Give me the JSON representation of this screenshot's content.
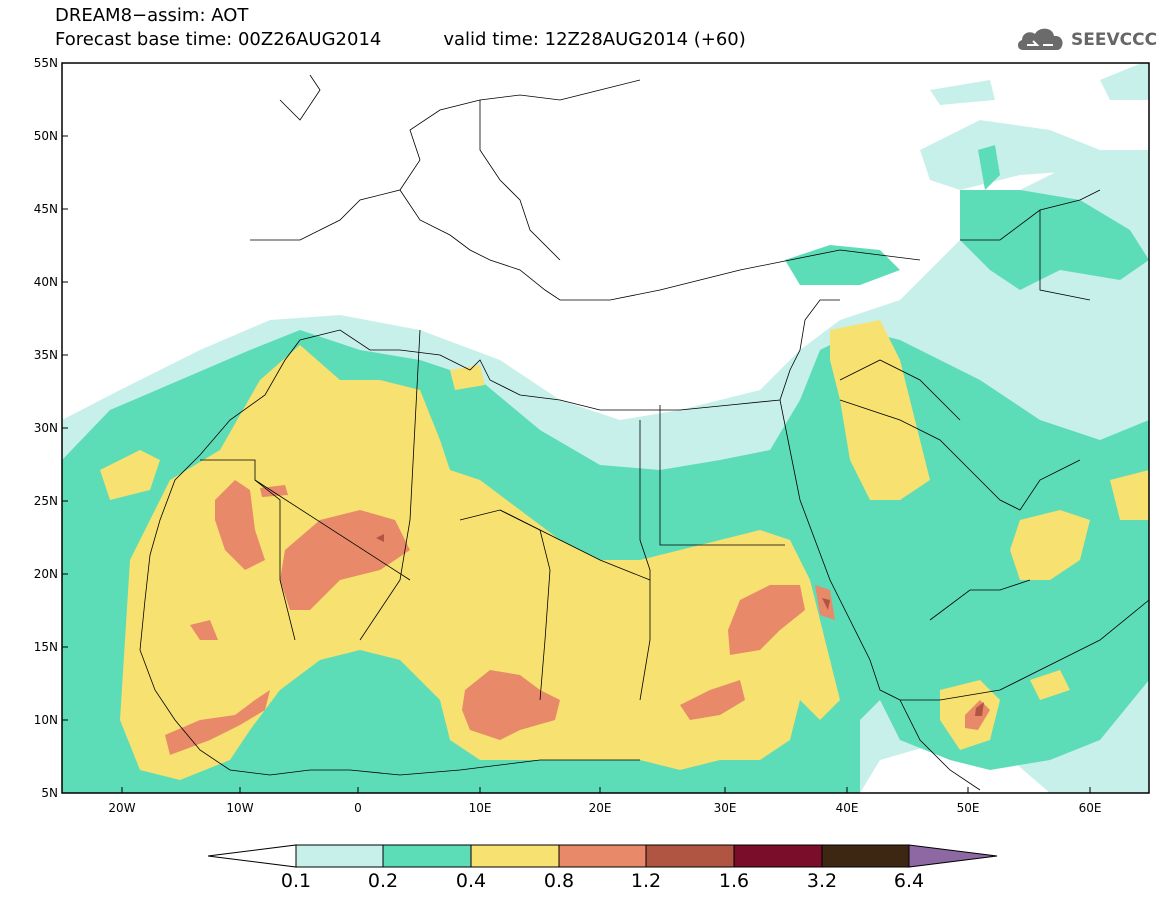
{
  "title": {
    "line1": "DREAM8−assim: AOT",
    "base_time": "Forecast base time: 00Z26AUG2014",
    "valid_time": "valid time: 12Z28AUG2014 (+60)"
  },
  "logo": {
    "text": "SEEVCCC",
    "icon": "cloud-icon"
  },
  "map": {
    "variable": "AOT",
    "lon_range": [
      -25,
      65
    ],
    "lat_range": [
      5,
      55
    ],
    "lon_ticks": [
      "20W",
      "10W",
      "0",
      "10E",
      "20E",
      "30E",
      "40E",
      "50E",
      "60E"
    ],
    "lat_ticks": [
      "5N",
      "10N",
      "15N",
      "20N",
      "25N",
      "30N",
      "35N",
      "40N",
      "45N",
      "50N",
      "55N"
    ]
  },
  "colorbar": {
    "labels": [
      "0.1",
      "0.2",
      "0.4",
      "0.8",
      "1.2",
      "1.6",
      "3.2",
      "6.4"
    ],
    "colors": {
      "below": "#ffffff",
      "c1": "#c8f0ea",
      "c2": "#5ddcb8",
      "c3": "#f7e170",
      "c4": "#e8896a",
      "c5": "#b05542",
      "c6": "#7a0d2a",
      "c7": "#3d2713",
      "above": "#8d68a3"
    }
  }
}
